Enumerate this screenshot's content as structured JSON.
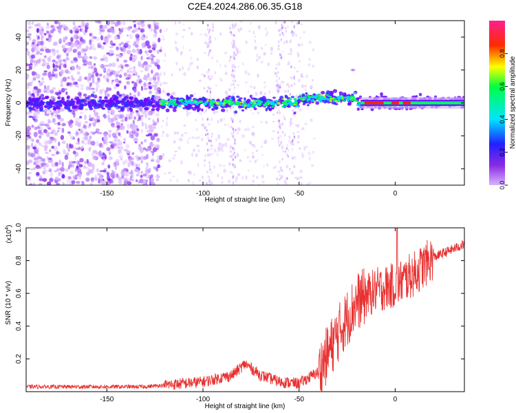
{
  "title": "C2E4.2024.286.06.35.G18",
  "chart_data": [
    {
      "type": "heatmap",
      "xlabel": "Height of straight line (km)",
      "ylabel": "Frequency (Hz)",
      "xlim": [
        -192,
        36
      ],
      "ylim": [
        -50,
        50
      ],
      "xticks": [
        -150,
        -100,
        -50,
        0
      ],
      "yticks": [
        -40,
        -20,
        0,
        20,
        40
      ],
      "colorbar": {
        "label": "Normalized spectral amplitude",
        "range": [
          0,
          1
        ],
        "ticks": [
          0.0,
          0.2,
          0.4,
          0.6,
          0.8
        ],
        "colormap": "rainbow (purple-blue-cyan-green-yellow-red-magenta)"
      }
    },
    {
      "type": "line",
      "xlabel": "Height of straight line (km)",
      "ylabel": "SNR (10 * v/v)",
      "multiplier": "(x10^4)",
      "xlim": [
        -192,
        36
      ],
      "ylim": [
        0,
        1.0
      ],
      "xticks": [
        -150,
        -100,
        -50,
        0
      ],
      "yticks": [
        0.2,
        0.4,
        0.6,
        0.8,
        1.0
      ],
      "color": "#e83030",
      "trend": [
        {
          "x": -192,
          "y": 0.03
        },
        {
          "x": -130,
          "y": 0.03
        },
        {
          "x": -120,
          "y": 0.04
        },
        {
          "x": -100,
          "y": 0.06
        },
        {
          "x": -85,
          "y": 0.1
        },
        {
          "x": -78,
          "y": 0.17
        },
        {
          "x": -70,
          "y": 0.1
        },
        {
          "x": -60,
          "y": 0.06
        },
        {
          "x": -50,
          "y": 0.05
        },
        {
          "x": -40,
          "y": 0.12
        },
        {
          "x": -30,
          "y": 0.35
        },
        {
          "x": -20,
          "y": 0.55
        },
        {
          "x": -10,
          "y": 0.62
        },
        {
          "x": 0,
          "y": 0.65
        },
        {
          "x": 10,
          "y": 0.72
        },
        {
          "x": 20,
          "y": 0.82
        },
        {
          "x": 36,
          "y": 0.9
        }
      ]
    }
  ]
}
